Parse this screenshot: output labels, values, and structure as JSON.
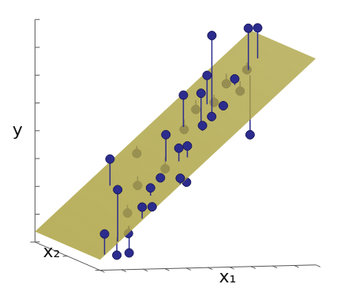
{
  "chart_data": {
    "type": "scatter",
    "x1_label": "x₁",
    "x2_label": "x₂",
    "y_label": "y",
    "color": "#2c2c8e",
    "x1lim": [
      0,
      10
    ],
    "x2lim": [
      0,
      10
    ],
    "ylim": [
      0,
      8
    ],
    "x1ticks": [
      0,
      1,
      2,
      3,
      4,
      5,
      6,
      7,
      8,
      9,
      10
    ],
    "x2ticks": [
      0,
      5,
      10
    ],
    "yticks": [
      0,
      1,
      2,
      3,
      4,
      5,
      6,
      7,
      8
    ],
    "tick_labels": false,
    "plane": {
      "intercept": 0.38,
      "x1": 0.704,
      "x2": 0,
      "color": "#aea445"
    },
    "points": {
      "x1": [
        0.24,
        0.88,
        2.66,
        1.57,
        1.0,
        2.02,
        2.27,
        1.56,
        3.38,
        4.4,
        2.92,
        2.43,
        3.53,
        4.43,
        4.31,
        4.5,
        4.76,
        3.74,
        4.04,
        6.0,
        5.73,
        6.82,
        5.99,
        6.85,
        5.88,
        6.54,
        6.35,
        7.27,
        6.89,
        8.17,
        8.12,
        8.86,
        8.62,
        9.15,
        8.47,
        7.91
      ],
      "x2": [
        0.1,
        0.2,
        7.29,
        0.73,
        0.73,
        0.22,
        3.3,
        0.81,
        5.43,
        8.94,
        1.92,
        0.05,
        2.42,
        4.68,
        4.17,
        2.81,
        2.36,
        0.07,
        0.1,
        6.97,
        6.19,
        7.9,
        4.34,
        6.27,
        3.75,
        4.5,
        3.9,
        6.58,
        3.9,
        7.69,
        5.4,
        6.81,
        5.79,
        6.12,
        5.03,
        5.53
      ],
      "y": [
        1.29,
        2.86,
        3.21,
        0.52,
        0.45,
        2.21,
        1.68,
        1.21,
        2.43,
        3.21,
        2.71,
        2.23,
        3.01,
        3.09,
        4.37,
        4.02,
        4.14,
        3.23,
        3.08,
        4.24,
        5.56,
        4.85,
        5.81,
        6.24,
        4.71,
        7.86,
        5.01,
        5.23,
        5.39,
        5.77,
        5.74,
        6.35,
        7.95,
        7.92,
        4.2,
        6.17
      ]
    }
  }
}
